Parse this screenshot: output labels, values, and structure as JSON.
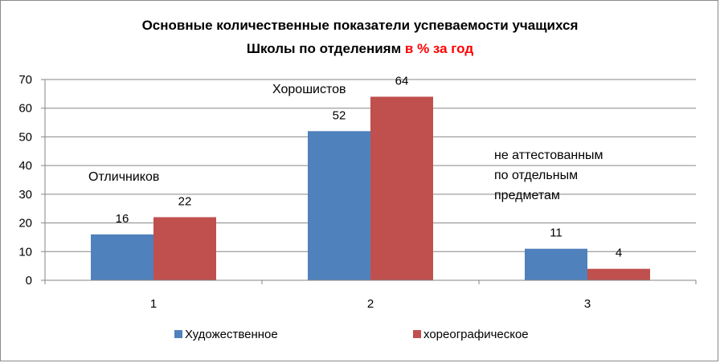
{
  "chart_data": {
    "type": "bar",
    "title_line1": "Основные количественные показатели успеваемости учащихся",
    "title_line2_black": "Школы по отделениям",
    "title_line2_red": "в % за год",
    "title_red_color": "#ff0000",
    "categories": [
      "1",
      "2",
      "3"
    ],
    "series": [
      {
        "name": "Художественное",
        "values": [
          16,
          52,
          11
        ],
        "color": "#4f81bd"
      },
      {
        "name": "хореографическое",
        "values": [
          22,
          64,
          4
        ],
        "color": "#c0504d"
      }
    ],
    "ylim": [
      0,
      70
    ],
    "yticks": [
      0,
      10,
      20,
      30,
      40,
      50,
      60,
      70
    ],
    "grid": true,
    "legend_position": "bottom",
    "annotations": [
      {
        "category_index": 0,
        "lines": [
          "Отличников"
        ]
      },
      {
        "category_index": 1,
        "lines": [
          "Хорошистов"
        ]
      },
      {
        "category_index": 2,
        "lines": [
          "не аттестованным",
          "по отдельным",
          "предметам"
        ]
      }
    ]
  }
}
